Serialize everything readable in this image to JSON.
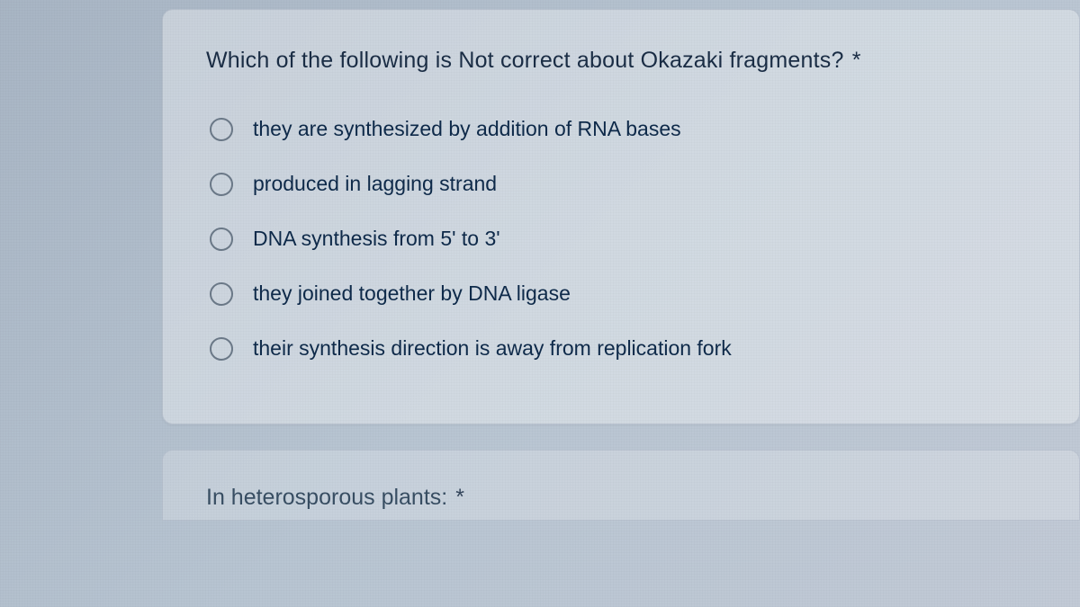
{
  "question": {
    "title": "Which of the following is Not correct about Okazaki fragments?",
    "required_marker": "*",
    "options": [
      {
        "label": "they are synthesized by addition of RNA bases"
      },
      {
        "label": "produced in lagging strand"
      },
      {
        "label": "DNA synthesis from 5' to 3'"
      },
      {
        "label": "they joined together by DNA ligase"
      },
      {
        "label": "their synthesis direction is away from replication fork"
      }
    ]
  },
  "next_question": {
    "partial_title": "In heterosporous plants:",
    "required_marker": "*"
  },
  "colors": {
    "text_primary": "#1a2d45",
    "option_text": "#0e2a4a",
    "radio_border": "#6b7988",
    "card_bg": "rgba(255,255,255,0.35)",
    "page_bg_start": "#a8b5c4",
    "page_bg_end": "#c2cad6"
  },
  "typography": {
    "title_fontsize": 25,
    "option_fontsize": 23,
    "font_family": "Arial"
  },
  "layout": {
    "card_radius": 12,
    "radio_size": 26,
    "option_gap": 34
  }
}
